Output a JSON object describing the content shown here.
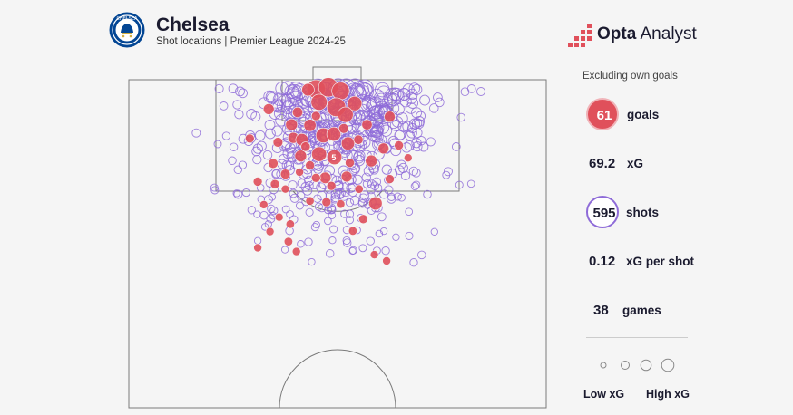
{
  "header": {
    "team": "Chelsea",
    "subtitle": "Shot locations | Premier League 2024-25",
    "crest_text": "CHELSEA"
  },
  "brand": {
    "bold": "Opta",
    "light": " Analyst"
  },
  "stats": {
    "note": "Excluding own goals",
    "goals_value": "61",
    "goals_label": "goals",
    "xg_value": "69.2",
    "xg_label": "xG",
    "shots_value": "595",
    "shots_label": "shots",
    "xg_per_shot_value": "0.12",
    "xg_per_shot_label": "xG per shot",
    "games_value": "38",
    "games_label": "games"
  },
  "legend": {
    "low": "Low xG",
    "high": "High xG"
  },
  "colors": {
    "goal_fill": "#e0505b",
    "shot_stroke": "#8e6bd8",
    "pitch_line": "#7a7a7a",
    "crest_blue": "#034694"
  },
  "chart_data": {
    "type": "scatter",
    "description_of_coords": "x = metres from left touchline (0-68), y = metres from goal line (0-52.5)",
    "goals": [
      {
        "x": 30.5,
        "y": 1.5,
        "xg": 0.55
      },
      {
        "x": 32.5,
        "y": 1.2,
        "xg": 0.62
      },
      {
        "x": 34.5,
        "y": 1.8,
        "xg": 0.48
      },
      {
        "x": 31.0,
        "y": 3.6,
        "xg": 0.38
      },
      {
        "x": 33.8,
        "y": 4.4,
        "xg": 0.58
      },
      {
        "x": 36.8,
        "y": 3.8,
        "xg": 0.28
      },
      {
        "x": 29.2,
        "y": 1.6,
        "xg": 0.18
      },
      {
        "x": 22.8,
        "y": 4.7,
        "xg": 0.12
      },
      {
        "x": 27.5,
        "y": 5.2,
        "xg": 0.1
      },
      {
        "x": 35.3,
        "y": 5.6,
        "xg": 0.34
      },
      {
        "x": 42.5,
        "y": 5.9,
        "xg": 0.12
      },
      {
        "x": 26.5,
        "y": 7.2,
        "xg": 0.15
      },
      {
        "x": 29.5,
        "y": 7.3,
        "xg": 0.17
      },
      {
        "x": 31.7,
        "y": 8.9,
        "xg": 0.3
      },
      {
        "x": 33.4,
        "y": 8.7,
        "xg": 0.26
      },
      {
        "x": 26.8,
        "y": 9.3,
        "xg": 0.12
      },
      {
        "x": 28.2,
        "y": 9.6,
        "xg": 0.18
      },
      {
        "x": 35.7,
        "y": 10.2,
        "xg": 0.22
      },
      {
        "x": 24.3,
        "y": 10.0,
        "xg": 0.08
      },
      {
        "x": 38.8,
        "y": 7.2,
        "xg": 0.1
      },
      {
        "x": 28.0,
        "y": 12.2,
        "xg": 0.15
      },
      {
        "x": 31.0,
        "y": 11.9,
        "xg": 0.3
      },
      {
        "x": 33.5,
        "y": 12.4,
        "xg": 0.3
      },
      {
        "x": 41.5,
        "y": 11.0,
        "xg": 0.12
      },
      {
        "x": 19.7,
        "y": 9.4,
        "xg": 0.06
      },
      {
        "x": 44.0,
        "y": 10.5,
        "xg": 0.06
      },
      {
        "x": 23.5,
        "y": 13.4,
        "xg": 0.08
      },
      {
        "x": 29.5,
        "y": 13.7,
        "xg": 0.06
      },
      {
        "x": 39.5,
        "y": 13.0,
        "xg": 0.15
      },
      {
        "x": 32.0,
        "y": 15.7,
        "xg": 0.14
      },
      {
        "x": 25.5,
        "y": 15.1,
        "xg": 0.08
      },
      {
        "x": 30.5,
        "y": 15.7,
        "xg": 0.06
      },
      {
        "x": 35.5,
        "y": 15.5,
        "xg": 0.12
      },
      {
        "x": 42.5,
        "y": 15.9,
        "xg": 0.06
      },
      {
        "x": 21.0,
        "y": 16.3,
        "xg": 0.06
      },
      {
        "x": 23.8,
        "y": 16.7,
        "xg": 0.06
      },
      {
        "x": 25.5,
        "y": 17.5,
        "xg": 0.04
      },
      {
        "x": 37.5,
        "y": 17.5,
        "xg": 0.05
      },
      {
        "x": 40.2,
        "y": 19.8,
        "xg": 0.22
      },
      {
        "x": 29.5,
        "y": 19.4,
        "xg": 0.05
      },
      {
        "x": 32.2,
        "y": 19.6,
        "xg": 0.06
      },
      {
        "x": 34.5,
        "y": 19.9,
        "xg": 0.05
      },
      {
        "x": 38.2,
        "y": 22.3,
        "xg": 0.06
      },
      {
        "x": 26.3,
        "y": 23.1,
        "xg": 0.05
      },
      {
        "x": 36.5,
        "y": 24.2,
        "xg": 0.05
      },
      {
        "x": 26.0,
        "y": 25.9,
        "xg": 0.05
      },
      {
        "x": 21.0,
        "y": 26.9,
        "xg": 0.04
      },
      {
        "x": 27.3,
        "y": 27.5,
        "xg": 0.04
      },
      {
        "x": 40.0,
        "y": 28.0,
        "xg": 0.04
      },
      {
        "x": 42.0,
        "y": 29.0,
        "xg": 0.04
      },
      {
        "x": 23.0,
        "y": 24.3,
        "xg": 0.04
      },
      {
        "x": 28.8,
        "y": 10.7,
        "xg": 0.07
      },
      {
        "x": 35.0,
        "y": 7.8,
        "xg": 0.08
      },
      {
        "x": 37.4,
        "y": 9.6,
        "xg": 0.07
      },
      {
        "x": 30.5,
        "y": 5.8,
        "xg": 0.06
      },
      {
        "x": 27.8,
        "y": 14.8,
        "xg": 0.04
      },
      {
        "x": 36.0,
        "y": 13.3,
        "xg": 0.06
      },
      {
        "x": 33.0,
        "y": 17.0,
        "xg": 0.06
      },
      {
        "x": 22.0,
        "y": 20.0,
        "xg": 0.04
      },
      {
        "x": 24.5,
        "y": 22.0,
        "xg": 0.04
      },
      {
        "x": 45.5,
        "y": 12.5,
        "xg": 0.04
      }
    ],
    "markers": [
      {
        "x": 33.4,
        "y": 12.4,
        "label": "5"
      }
    ],
    "shots_count": 595,
    "pitch": {
      "width_m": 68,
      "length_m": 52.5
    }
  }
}
